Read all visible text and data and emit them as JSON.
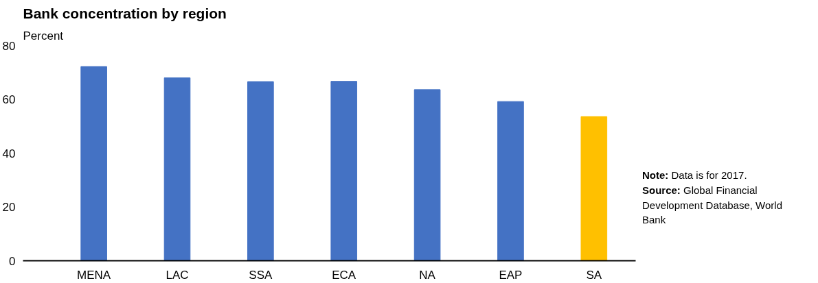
{
  "chart_data": {
    "type": "bar",
    "title": "Bank concentration by region",
    "subtitle": "Percent",
    "categories": [
      "MENA",
      "LAC",
      "SSA",
      "ECA",
      "NA",
      "EAP",
      "SA"
    ],
    "values": [
      72.2,
      68.0,
      66.6,
      66.7,
      63.6,
      59.2,
      53.6
    ],
    "colors": [
      "#4472c4",
      "#4472c4",
      "#4472c4",
      "#4472c4",
      "#4472c4",
      "#4472c4",
      "#ffc000"
    ],
    "ylim": [
      0,
      80
    ],
    "yticks": [
      0,
      20,
      40,
      60,
      80
    ],
    "grid": false,
    "annotations": [
      "Note: Data is for 2017.",
      "Source: Global Financial Development Database, World Bank"
    ]
  }
}
